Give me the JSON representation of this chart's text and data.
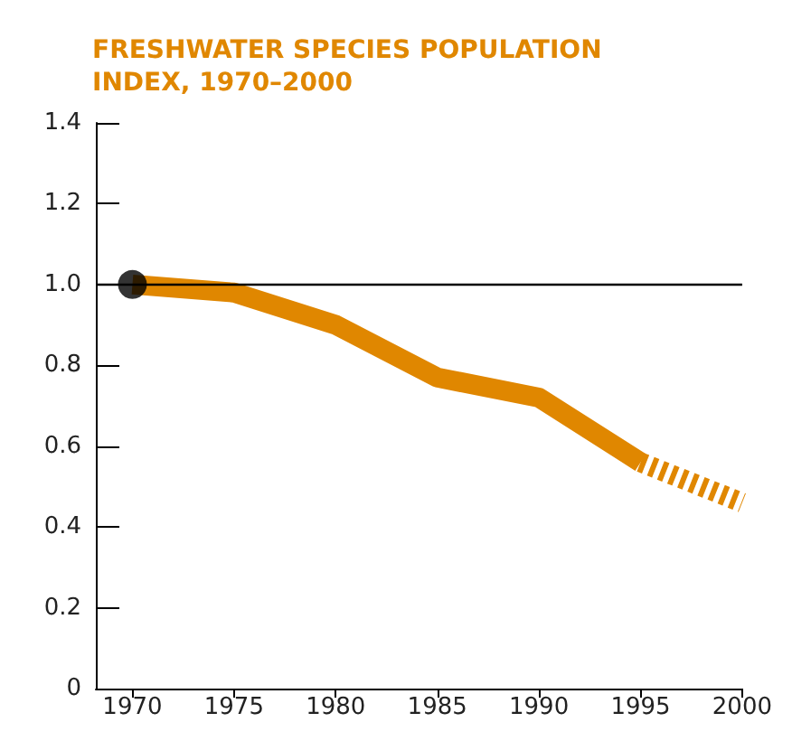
{
  "chart_data": {
    "type": "line",
    "title": "FRESHWATER SPECIES POPULATION INDEX, 1970–2000",
    "xlim": [
      1968.2,
      2000
    ],
    "xticks": [
      1970,
      1975,
      1980,
      1985,
      1990,
      1995,
      2000
    ],
    "ylim": [
      0,
      1.4
    ],
    "yticks": [
      0,
      0.2,
      0.4,
      0.6,
      0.8,
      {
        "value": 1,
        "label": "1.0"
      },
      1.2,
      1.4
    ],
    "series": [
      {
        "color": "#e08700",
        "line_style": "solid",
        "marker": "none",
        "x": [
          1970,
          1975,
          1980,
          1985,
          1990,
          1995
        ],
        "values": [
          1.0,
          0.98,
          0.9,
          0.77,
          0.72,
          0.56
        ]
      },
      {
        "color": "#e08700",
        "line_style": "dashed",
        "marker": "none",
        "x": [
          1995,
          2000
        ],
        "values": [
          0.56,
          0.46
        ]
      },
      {
        "type": "scatter",
        "color": "#000000",
        "marker": "circle",
        "x": [
          1970
        ],
        "values": [
          1.0
        ]
      }
    ],
    "ref_lines": [
      {
        "axis": "y",
        "value": 1.0,
        "color": "#000000",
        "line_style": "solid"
      }
    ],
    "grid": false
  }
}
